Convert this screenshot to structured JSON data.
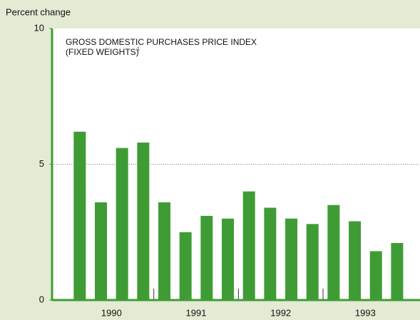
{
  "chart_data": {
    "type": "bar",
    "y_axis_label": "Percent change",
    "title": "GROSS DOMESTIC PURCHASES PRICE INDEX",
    "subtitle": "(FIXED WEIGHTS)",
    "footnote_marker": "1",
    "categories": [
      null,
      null,
      null,
      null,
      null,
      null,
      null,
      null,
      null,
      null,
      null,
      null,
      null,
      null,
      null,
      null
    ],
    "x_groups": [
      "1990",
      "1991",
      "1992",
      "1993"
    ],
    "values": [
      6.2,
      3.6,
      5.6,
      5.8,
      3.6,
      2.5,
      3.1,
      3.0,
      4.0,
      3.4,
      3.0,
      2.8,
      3.5,
      2.9,
      1.8,
      2.1
    ],
    "color": "#3f9c35",
    "ylim": [
      0,
      10
    ],
    "yticks": [
      0,
      5,
      10
    ],
    "grid_at": [
      5
    ]
  }
}
